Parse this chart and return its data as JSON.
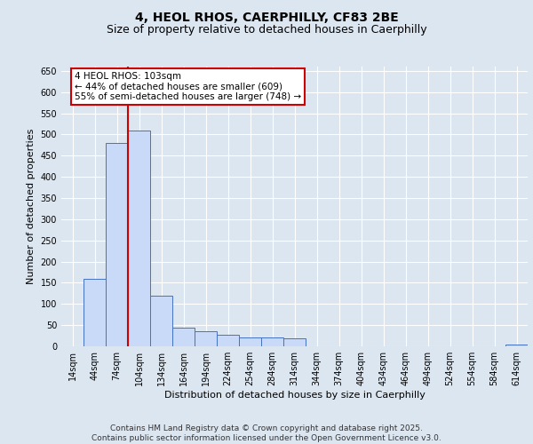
{
  "title_line1": "4, HEOL RHOS, CAERPHILLY, CF83 2BE",
  "title_line2": "Size of property relative to detached houses in Caerphilly",
  "xlabel": "Distribution of detached houses by size in Caerphilly",
  "ylabel": "Number of detached properties",
  "categories": [
    "14sqm",
    "44sqm",
    "74sqm",
    "104sqm",
    "134sqm",
    "164sqm",
    "194sqm",
    "224sqm",
    "254sqm",
    "284sqm",
    "314sqm",
    "344sqm",
    "374sqm",
    "404sqm",
    "434sqm",
    "464sqm",
    "494sqm",
    "524sqm",
    "554sqm",
    "584sqm",
    "614sqm"
  ],
  "values": [
    0,
    160,
    480,
    510,
    120,
    45,
    35,
    28,
    22,
    20,
    18,
    0,
    0,
    0,
    0,
    0,
    0,
    0,
    0,
    0,
    5
  ],
  "bar_color": "#c9daf8",
  "bar_edge_color": "#4472c4",
  "bg_color": "#dce6f1",
  "plot_bg_color": "#dce6f1",
  "grid_color": "#ffffff",
  "annotation_text": "4 HEOL RHOS: 103sqm\n← 44% of detached houses are smaller (609)\n55% of semi-detached houses are larger (748) →",
  "annotation_box_color": "#cc0000",
  "ylim": [
    0,
    660
  ],
  "yticks": [
    0,
    50,
    100,
    150,
    200,
    250,
    300,
    350,
    400,
    450,
    500,
    550,
    600,
    650
  ],
  "footer_line1": "Contains HM Land Registry data © Crown copyright and database right 2025.",
  "footer_line2": "Contains public sector information licensed under the Open Government Licence v3.0.",
  "title_fontsize": 10,
  "subtitle_fontsize": 9,
  "axis_label_fontsize": 8,
  "tick_fontsize": 7,
  "annotation_fontsize": 7.5,
  "footer_fontsize": 6.5
}
